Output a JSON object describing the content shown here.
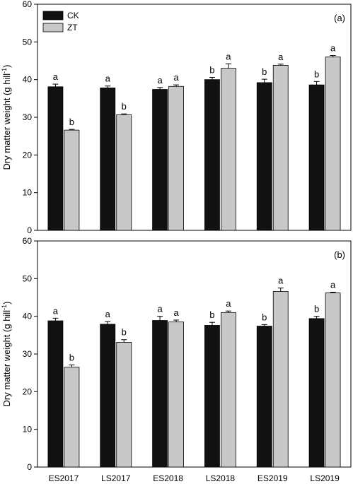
{
  "chart_data": [
    {
      "type": "bar",
      "panel_label": "(a)",
      "ylabel": "Dry matter weight (g hill",
      "ylabel_superscript": "-1",
      "ylabel_suffix": ")",
      "ylim": [
        0,
        60
      ],
      "yticks": [
        "0",
        "10",
        "20",
        "30",
        "40",
        "50",
        "60"
      ],
      "categories": [
        "ES2017",
        "LS2017",
        "ES2018",
        "LS2018",
        "ES2019",
        "LS2019"
      ],
      "legend_placement": "top-left",
      "series": [
        {
          "name": "CK",
          "color": "#111111",
          "values": [
            38.1,
            37.8,
            37.4,
            40.0,
            39.2,
            38.6
          ],
          "errors": [
            0.7,
            0.5,
            0.5,
            0.6,
            0.9,
            0.9
          ],
          "sig": [
            "a",
            "a",
            "a",
            "b",
            "b",
            "b"
          ]
        },
        {
          "name": "ZT",
          "color": "#c8c8c8",
          "values": [
            26.6,
            30.7,
            38.2,
            43.0,
            43.8,
            46.0
          ],
          "errors": [
            0.2,
            0.2,
            0.4,
            1.2,
            0.3,
            0.4
          ],
          "sig": [
            "b",
            "b",
            "a",
            "a",
            "a",
            "a"
          ]
        }
      ]
    },
    {
      "type": "bar",
      "panel_label": "(b)",
      "ylabel": "Dry matter weight (g hill",
      "ylabel_superscript": "-1",
      "ylabel_suffix": ")",
      "ylim": [
        0,
        60
      ],
      "yticks": [
        "0",
        "10",
        "20",
        "30",
        "40",
        "50",
        "60"
      ],
      "categories": [
        "ES2017",
        "LS2017",
        "ES2018",
        "LS2018",
        "ES2019",
        "LS2019"
      ],
      "series": [
        {
          "name": "CK",
          "color": "#111111",
          "values": [
            38.8,
            37.9,
            38.9,
            37.6,
            37.4,
            39.4
          ],
          "errors": [
            0.7,
            0.7,
            1.1,
            0.8,
            0.4,
            0.6
          ],
          "sig": [
            "a",
            "a",
            "a",
            "b",
            "b",
            "b"
          ]
        },
        {
          "name": "ZT",
          "color": "#c8c8c8",
          "values": [
            26.5,
            33.1,
            38.5,
            41.0,
            46.6,
            46.2
          ],
          "errors": [
            0.6,
            0.7,
            0.5,
            0.4,
            0.9,
            0.2
          ],
          "sig": [
            "b",
            "b",
            "a",
            "a",
            "a",
            "a"
          ]
        }
      ]
    }
  ]
}
